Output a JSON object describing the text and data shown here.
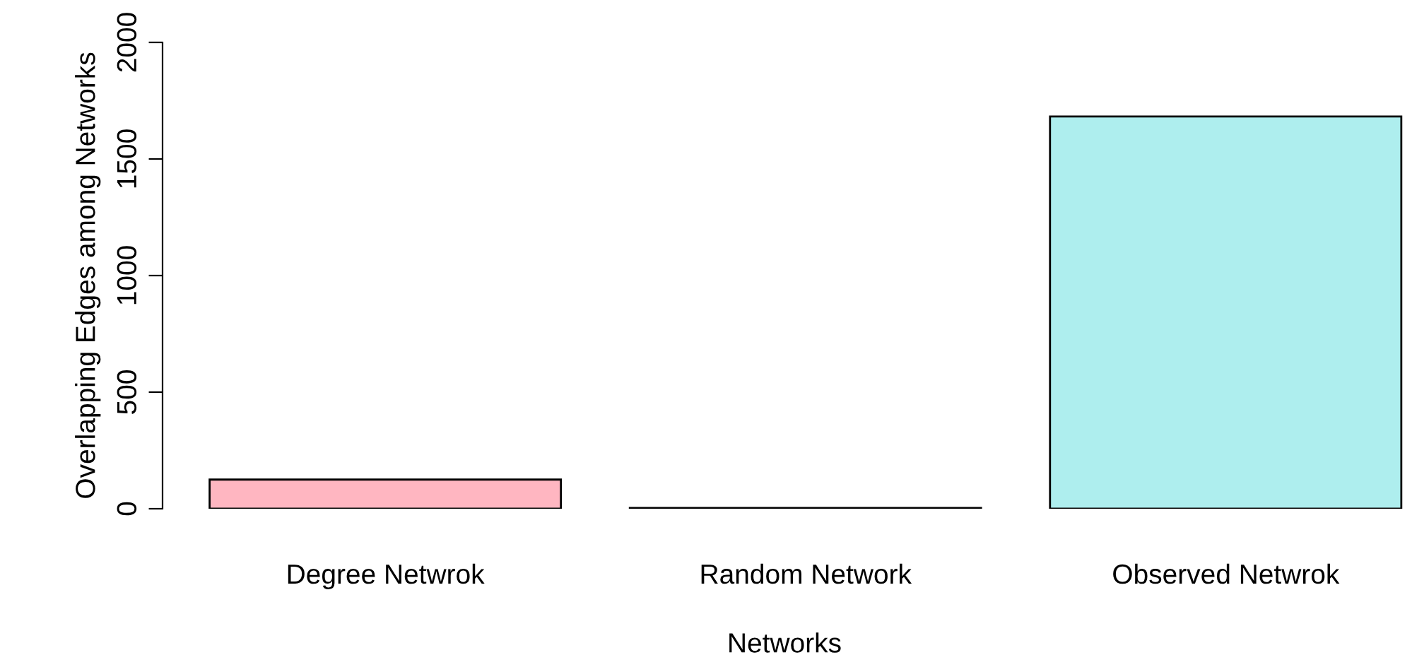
{
  "chart_data": {
    "type": "bar",
    "xlabel": "Networks",
    "ylabel": "Overlapping Edges among Networks",
    "categories": [
      "Degree Netwrok",
      "Random Network",
      "Observed Netwrok"
    ],
    "values": [
      125,
      3,
      1682
    ],
    "colors": [
      "#ffb6c1",
      "#000000",
      "#aeeeee"
    ],
    "ylim": [
      0,
      2000
    ],
    "yticks": [
      0,
      500,
      1000,
      1500,
      2000
    ],
    "grid": false
  }
}
